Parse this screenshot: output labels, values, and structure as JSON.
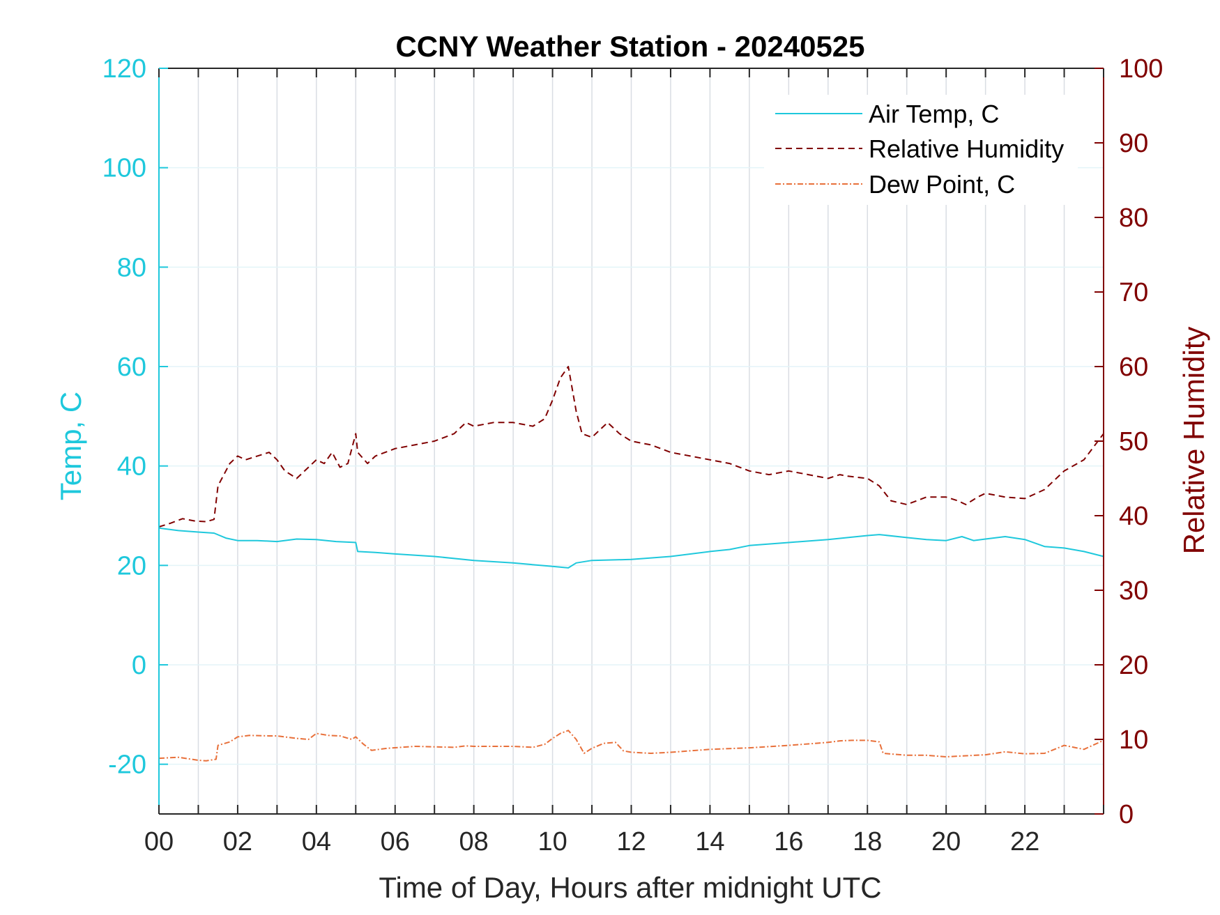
{
  "chart_data": {
    "type": "line",
    "title": "CCNY Weather Station - 20240525",
    "xlabel": "Time of Day, Hours after midnight UTC",
    "ylabel_left": "Temp, C",
    "ylabel_right": "Relative Humidity",
    "xlim": [
      0,
      24
    ],
    "ylim_left": [
      -30,
      120
    ],
    "ylim_right": [
      0,
      100
    ],
    "x_ticks": [
      0,
      2,
      4,
      6,
      8,
      10,
      12,
      14,
      16,
      18,
      20,
      22
    ],
    "x_tick_labels": [
      "00",
      "02",
      "04",
      "06",
      "08",
      "10",
      "12",
      "14",
      "16",
      "18",
      "20",
      "22"
    ],
    "y_left_ticks": [
      -20,
      0,
      20,
      40,
      60,
      80,
      100,
      120
    ],
    "y_left_tick_labels": [
      "-20",
      "0",
      "20",
      "40",
      "60",
      "80",
      "100",
      "120"
    ],
    "y_right_ticks": [
      0,
      10,
      20,
      30,
      40,
      50,
      60,
      70,
      80,
      90,
      100
    ],
    "y_right_tick_labels": [
      "0",
      "10",
      "20",
      "30",
      "40",
      "50",
      "60",
      "70",
      "80",
      "90",
      "100"
    ],
    "grid": true,
    "legend_position": "top-right",
    "colors": {
      "left_axis": "#1ec8dc",
      "right_axis": "#800000",
      "air_temp": "#1ec8dc",
      "relative_humidity": "#800000",
      "dew_point": "#e8703a",
      "grid": "#d9dde3"
    },
    "series": [
      {
        "name": "Air Temp, C",
        "axis": "left",
        "style": "solid",
        "x": [
          0,
          0.5,
          1.0,
          1.4,
          1.7,
          2.0,
          2.5,
          3.0,
          3.5,
          4.0,
          4.5,
          5.0,
          5.05,
          5.5,
          6.0,
          7.0,
          8.0,
          9.0,
          10.0,
          10.4,
          10.6,
          11.0,
          12.0,
          13.0,
          14.0,
          14.5,
          15.0,
          16.0,
          17.0,
          17.5,
          18.0,
          18.3,
          19.0,
          19.5,
          20.0,
          20.4,
          20.7,
          21.0,
          21.5,
          22.0,
          22.5,
          23.0,
          23.5,
          24.0
        ],
        "values": [
          27.5,
          27,
          26.7,
          26.5,
          25.5,
          25,
          25,
          24.8,
          25.3,
          25.2,
          24.8,
          24.6,
          22.8,
          22.6,
          22.3,
          21.8,
          21,
          20.5,
          19.8,
          19.5,
          20.5,
          21,
          21.2,
          21.8,
          22.8,
          23.2,
          24,
          24.6,
          25.2,
          25.6,
          26,
          26.2,
          25.6,
          25.2,
          25,
          25.8,
          25,
          25.3,
          25.8,
          25.2,
          23.8,
          23.5,
          22.8,
          21.8
        ]
      },
      {
        "name": "Relative Humidity",
        "axis": "right",
        "style": "dashed",
        "x": [
          0,
          0.3,
          0.6,
          0.9,
          1.2,
          1.4,
          1.5,
          1.6,
          1.8,
          2.0,
          2.2,
          2.5,
          2.8,
          3.0,
          3.2,
          3.5,
          3.6,
          3.8,
          4.0,
          4.2,
          4.4,
          4.6,
          4.8,
          5.0,
          5.05,
          5.3,
          5.5,
          6.0,
          6.5,
          7.0,
          7.5,
          7.8,
          8.0,
          8.5,
          9.0,
          9.5,
          9.8,
          10.0,
          10.2,
          10.4,
          10.6,
          10.75,
          11.0,
          11.4,
          11.7,
          12.0,
          12.5,
          13.0,
          13.5,
          14.0,
          14.5,
          15.0,
          15.5,
          16.0,
          16.5,
          17.0,
          17.3,
          17.5,
          18.0,
          18.3,
          18.6,
          19.0,
          19.5,
          20.0,
          20.3,
          20.5,
          20.8,
          21.0,
          21.5,
          22.0,
          22.5,
          23.0,
          23.5,
          24.0
        ],
        "values": [
          38.5,
          39,
          39.6,
          39.3,
          39.2,
          39.5,
          44,
          45,
          47,
          48,
          47.5,
          48,
          48.5,
          47.5,
          46,
          45,
          45.5,
          46.5,
          47.5,
          47,
          48.5,
          46.5,
          47,
          51,
          48.5,
          47,
          48,
          49,
          49.5,
          50,
          51,
          52.5,
          52,
          52.5,
          52.5,
          52,
          53,
          55.5,
          58.5,
          60,
          54,
          51,
          50.5,
          52.5,
          51,
          50,
          49.5,
          48.5,
          48,
          47.5,
          47,
          46,
          45.5,
          46,
          45.5,
          45,
          45.5,
          45.3,
          45,
          44,
          42,
          41.5,
          42.5,
          42.5,
          42,
          41.5,
          42.5,
          43,
          42.5,
          42.3,
          43.5,
          46,
          47.5,
          51
        ]
      },
      {
        "name": "Dew Point, C",
        "axis": "left",
        "style": "dashdot",
        "x": [
          0,
          0.5,
          1.0,
          1.2,
          1.45,
          1.5,
          1.8,
          2.0,
          2.3,
          2.8,
          3.0,
          3.5,
          3.8,
          4.0,
          4.3,
          4.6,
          4.9,
          5.0,
          5.2,
          5.4,
          5.8,
          6.5,
          7.0,
          7.5,
          7.8,
          8.0,
          8.5,
          9.0,
          9.5,
          9.8,
          10.0,
          10.2,
          10.4,
          10.6,
          10.8,
          11.0,
          11.3,
          11.6,
          11.8,
          12.0,
          12.5,
          13.0,
          14.0,
          15.0,
          16.0,
          17.0,
          17.3,
          17.6,
          18.0,
          18.3,
          18.4,
          19.0,
          19.5,
          20.0,
          20.5,
          21.0,
          21.5,
          22.0,
          22.5,
          23.0,
          23.5,
          24.0
        ],
        "values": [
          -18.8,
          -18.6,
          -19.2,
          -19.3,
          -19,
          -16.2,
          -15.5,
          -14.5,
          -14.2,
          -14.3,
          -14.3,
          -14.8,
          -15,
          -13.8,
          -14.2,
          -14.3,
          -15,
          -14.5,
          -16,
          -17.2,
          -16.8,
          -16.4,
          -16.5,
          -16.6,
          -16.3,
          -16.4,
          -16.4,
          -16.4,
          -16.6,
          -16,
          -14.8,
          -13.8,
          -13.2,
          -15,
          -17.8,
          -16.8,
          -15.8,
          -15.6,
          -17.3,
          -17.6,
          -17.8,
          -17.6,
          -17,
          -16.7,
          -16.2,
          -15.6,
          -15.3,
          -15.2,
          -15.2,
          -15.5,
          -17.8,
          -18.2,
          -18.2,
          -18.5,
          -18.3,
          -18.1,
          -17.5,
          -17.9,
          -17.8,
          -16.2,
          -17,
          -15.2
        ]
      }
    ],
    "legend": [
      "Air Temp, C",
      "Relative Humidity",
      "Dew Point, C"
    ]
  }
}
